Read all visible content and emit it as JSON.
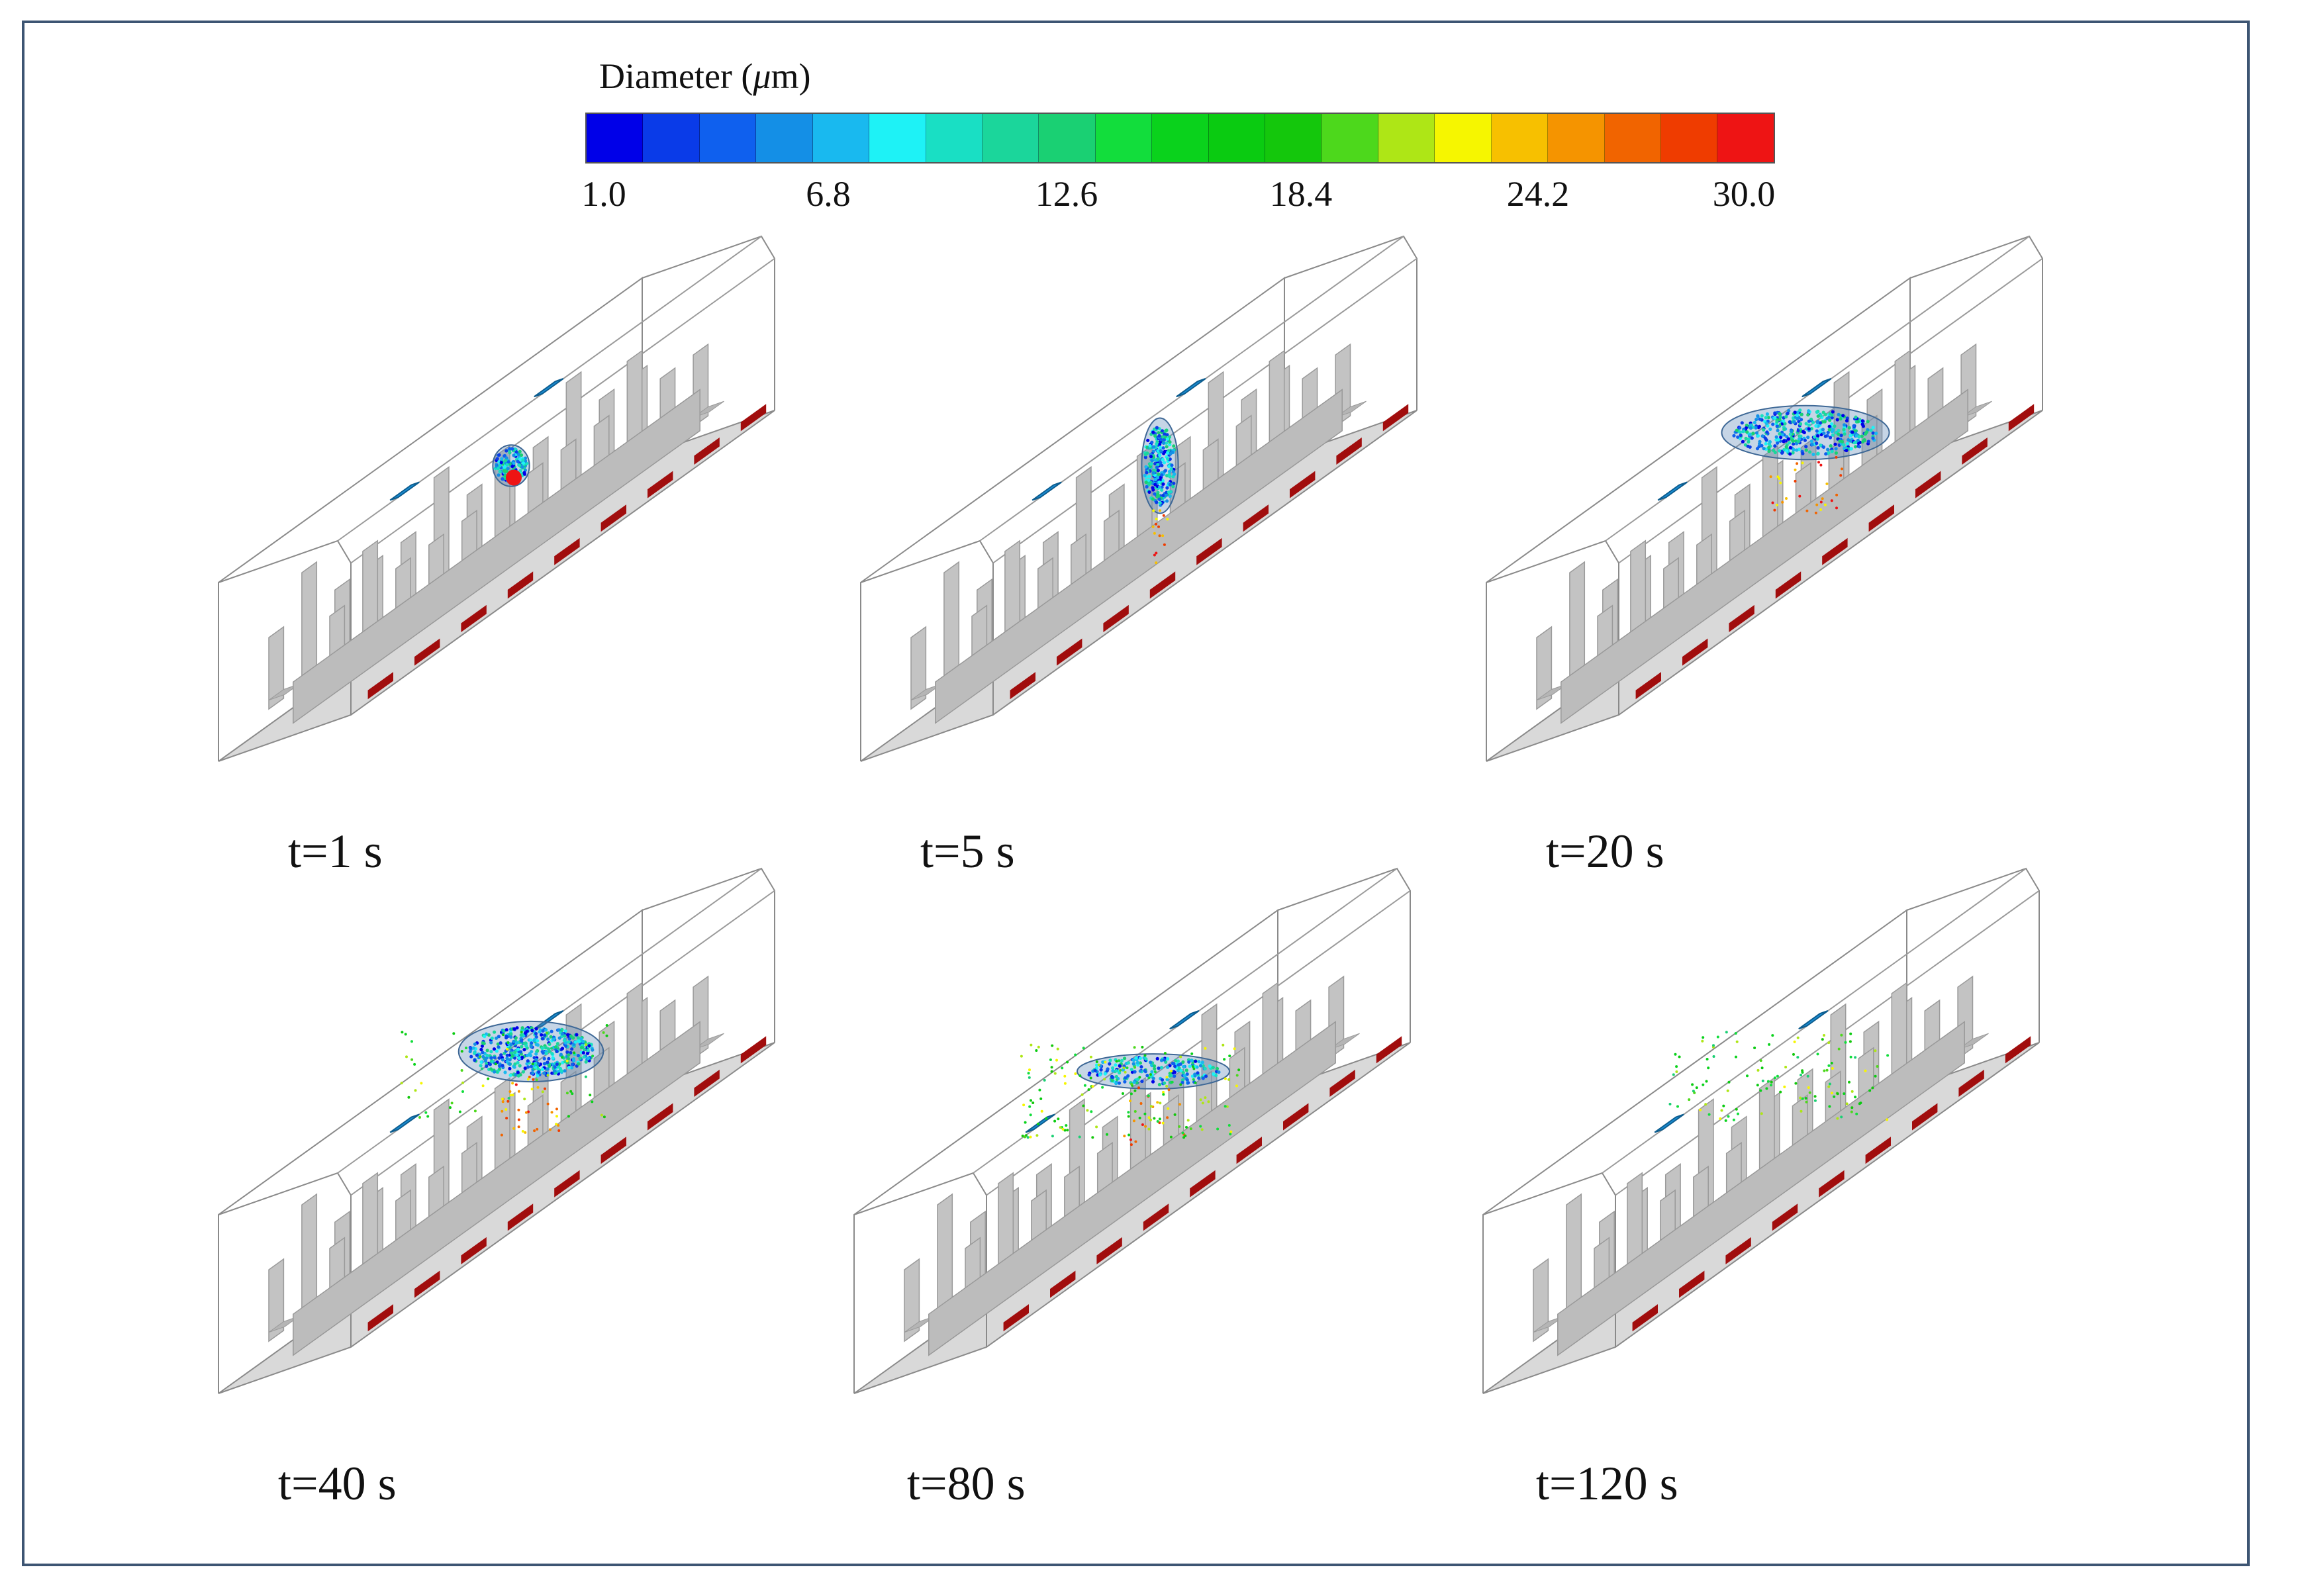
{
  "colorbar": {
    "title_prefix": "Diameter (",
    "title_unit_symbol": "μ",
    "title_suffix": "m)",
    "ticks": [
      "1.0",
      "6.8",
      "12.6",
      "18.4",
      "24.2",
      "30.0"
    ],
    "range": [
      1.0,
      30.0
    ],
    "colors": [
      "#0000e8",
      "#0a3be8",
      "#0f60ee",
      "#148fe6",
      "#19b9ef",
      "#1ef2f6",
      "#19dfc4",
      "#1bd69b",
      "#1ad073",
      "#12dd3c",
      "#0ad21c",
      "#0acb11",
      "#14c70c",
      "#4dd81c",
      "#aee616",
      "#f6f600",
      "#f7c000",
      "#f59400",
      "#f16400",
      "#ef3c00",
      "#ee1414"
    ]
  },
  "panels": [
    {
      "label": "t=1 s",
      "time_s": 1,
      "plume": "sphere"
    },
    {
      "label": "t=5 s",
      "time_s": 5,
      "plume": "column"
    },
    {
      "label": "t=20 s",
      "time_s": 20,
      "plume": "spread"
    },
    {
      "label": "t=40 s",
      "time_s": 40,
      "plume": "cloud"
    },
    {
      "label": "t=80 s",
      "time_s": 80,
      "plume": "diffuse"
    },
    {
      "label": "t=120 s",
      "time_s": 120,
      "plume": "sparse"
    }
  ],
  "colors": {
    "frame": "#3d5573",
    "seat": "#c3c3c3",
    "floor_strip": "#a10d0d",
    "vent": "#1a8fd6",
    "plume_shell": "#5b86b8"
  }
}
